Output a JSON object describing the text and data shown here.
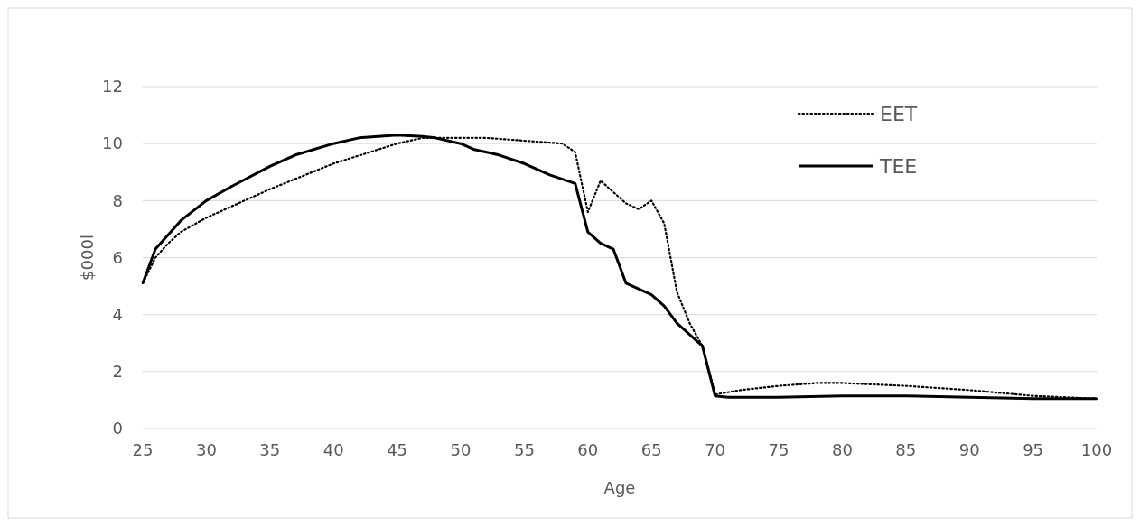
{
  "chart_data": {
    "type": "line",
    "xlabel": "Age",
    "ylabel": "$000l",
    "xlim": [
      25,
      100
    ],
    "xticks": [
      25,
      30,
      35,
      40,
      45,
      50,
      55,
      60,
      65,
      70,
      75,
      80,
      85,
      90,
      95,
      100
    ],
    "ylim": [
      0,
      12
    ],
    "yticks": [
      0,
      2,
      4,
      6,
      8,
      10,
      12
    ],
    "grid": "y",
    "legend": "top right",
    "series": [
      {
        "name": "EET",
        "color": "#000000",
        "line_style": "dotted",
        "x": [
          25,
          26,
          27,
          28,
          30,
          32,
          35,
          40,
          45,
          47,
          50,
          52,
          55,
          58,
          59,
          60,
          61,
          62,
          63,
          64,
          65,
          66,
          67,
          68,
          69,
          70,
          72,
          75,
          78,
          80,
          85,
          90,
          95,
          100
        ],
        "values": [
          5.1,
          6.0,
          6.5,
          6.9,
          7.4,
          7.8,
          8.4,
          9.3,
          10.0,
          10.2,
          10.2,
          10.2,
          10.1,
          10.0,
          9.7,
          7.6,
          8.7,
          8.3,
          7.9,
          7.7,
          8.0,
          7.2,
          4.8,
          3.7,
          2.9,
          1.2,
          1.35,
          1.5,
          1.6,
          1.6,
          1.5,
          1.35,
          1.15,
          1.05
        ]
      },
      {
        "name": "TEE",
        "color": "#000000",
        "line_style": "solid",
        "x": [
          25,
          26,
          27,
          28,
          30,
          32,
          35,
          37,
          40,
          42,
          45,
          47,
          48,
          50,
          51,
          53,
          55,
          57,
          59,
          60,
          61,
          62,
          63,
          65,
          66,
          67,
          69,
          70,
          71,
          75,
          80,
          85,
          90,
          95,
          100
        ],
        "values": [
          5.1,
          6.3,
          6.8,
          7.3,
          8.0,
          8.5,
          9.2,
          9.6,
          10.0,
          10.2,
          10.3,
          10.25,
          10.2,
          10.0,
          9.8,
          9.6,
          9.3,
          8.9,
          8.6,
          6.9,
          6.5,
          6.3,
          5.1,
          4.7,
          4.3,
          3.7,
          2.9,
          1.15,
          1.1,
          1.1,
          1.15,
          1.15,
          1.1,
          1.05,
          1.05
        ]
      }
    ]
  }
}
